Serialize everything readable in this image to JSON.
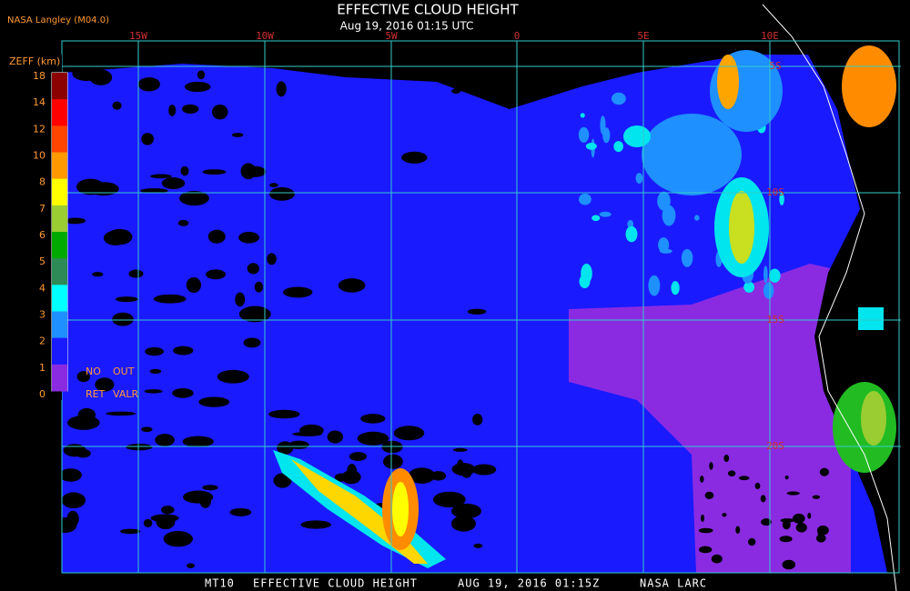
{
  "header": {
    "logo": "NASA Langley (M04.0)",
    "title": "EFFECTIVE CLOUD HEIGHT",
    "subtitle": "Aug 19, 2016 01:15 UTC"
  },
  "legend": {
    "unit": "ZEFF (km)",
    "labels": [
      "18",
      "14",
      "12",
      "10",
      "8",
      "7",
      "6",
      "5",
      "4",
      "3",
      "2",
      "1",
      "0"
    ],
    "notes": [
      "NO",
      "OUT",
      "RET",
      "VALR"
    ]
  },
  "grid": {
    "lon_labels": [
      "15W",
      "10W",
      "5W",
      "0",
      "5E",
      "10E"
    ],
    "lat_labels": [
      "5S",
      "10S",
      "15S",
      "20S"
    ]
  },
  "footer": [
    "MT10",
    "EFFECTIVE CLOUD HEIGHT",
    "AUG 19, 2016 01:15Z",
    "NASA LARC"
  ]
}
